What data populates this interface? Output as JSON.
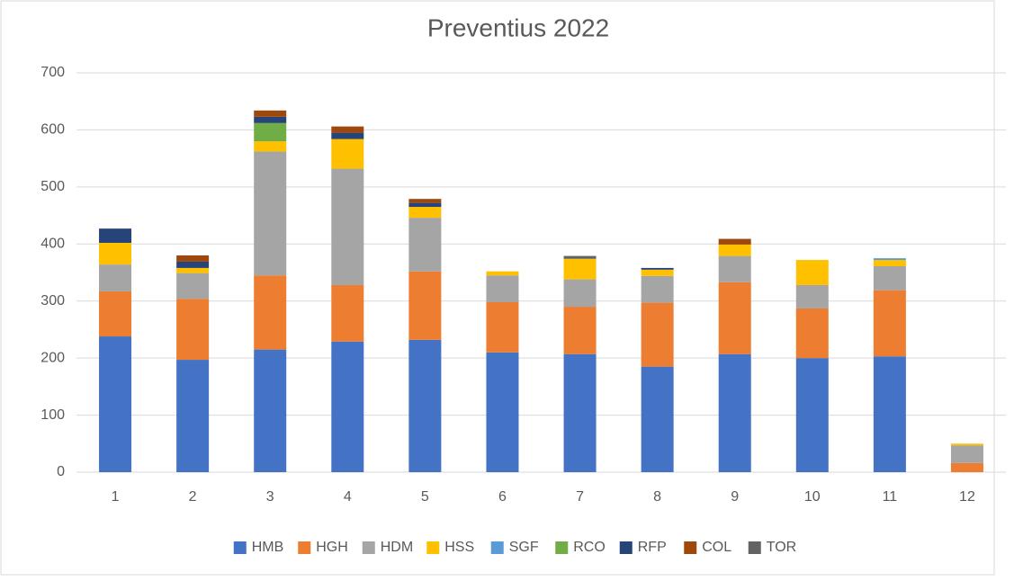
{
  "chart_data": {
    "type": "stacked_bar",
    "title": "Preventius 2022",
    "categories": [
      "1",
      "2",
      "3",
      "4",
      "5",
      "6",
      "7",
      "8",
      "9",
      "10",
      "11",
      "12"
    ],
    "series": [
      {
        "name": "HMB",
        "color": "#4472c4",
        "values": [
          238,
          197,
          215,
          229,
          232,
          210,
          207,
          185,
          207,
          200,
          203,
          0
        ]
      },
      {
        "name": "HGH",
        "color": "#ed7d31",
        "values": [
          79,
          107,
          130,
          99,
          120,
          88,
          83,
          112,
          126,
          87,
          116,
          16
        ]
      },
      {
        "name": "HDM",
        "color": "#a5a5a5",
        "values": [
          47,
          45,
          217,
          204,
          94,
          47,
          48,
          47,
          46,
          41,
          42,
          31
        ]
      },
      {
        "name": "HSS",
        "color": "#ffc000",
        "values": [
          38,
          9,
          18,
          52,
          19,
          7,
          36,
          11,
          20,
          44,
          11,
          3
        ]
      },
      {
        "name": "SGF",
        "color": "#5b9bd5",
        "values": [
          0,
          0,
          0,
          0,
          0,
          0,
          0,
          0,
          0,
          0,
          3,
          0
        ]
      },
      {
        "name": "RCO",
        "color": "#70ad47",
        "values": [
          0,
          0,
          32,
          0,
          0,
          0,
          0,
          0,
          0,
          0,
          0,
          0
        ]
      },
      {
        "name": "RFP",
        "color": "#264478",
        "values": [
          25,
          11,
          11,
          11,
          7,
          0,
          0,
          3,
          0,
          0,
          0,
          0
        ]
      },
      {
        "name": "COL",
        "color": "#9e480e",
        "values": [
          0,
          11,
          11,
          11,
          7,
          0,
          0,
          0,
          10,
          0,
          0,
          0
        ]
      },
      {
        "name": "TOR",
        "color": "#636363",
        "values": [
          0,
          0,
          0,
          0,
          0,
          0,
          5,
          0,
          0,
          0,
          0,
          0
        ]
      }
    ],
    "ylim": [
      0,
      700
    ],
    "yticks": [
      0,
      100,
      200,
      300,
      400,
      500,
      600,
      700
    ],
    "grid": true,
    "legend": "bottom"
  }
}
